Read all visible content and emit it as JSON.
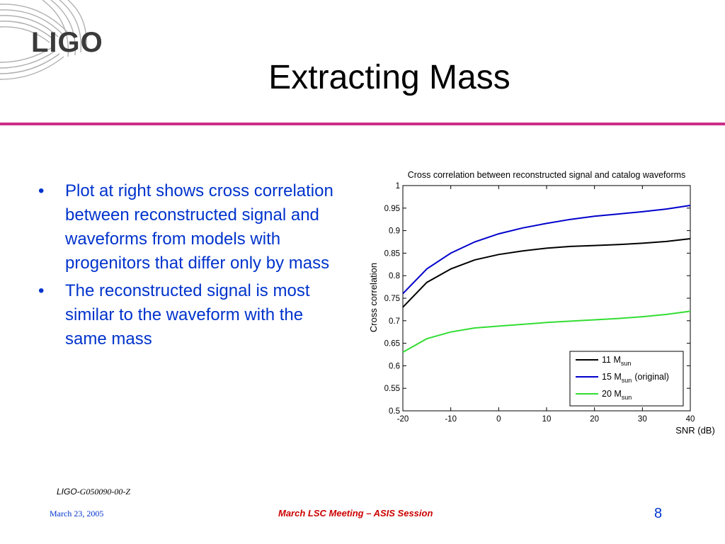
{
  "slide": {
    "title": "Extracting Mass",
    "logo_text": "LIGO",
    "bullets": [
      "Plot at right shows cross correlation between reconstructed signal and waveforms from models with progenitors that differ only by mass",
      "The reconstructed signal is most similar to the waveform with the same mass"
    ],
    "bullet_symbol": "•",
    "colors": {
      "accent_rule": "#cc2e88",
      "body_text": "#0033cc",
      "footer_meeting": "#cc0000"
    }
  },
  "footer": {
    "doc_prefix": "LIGO-",
    "doc_code": "G050090-00-Z",
    "date": "March 23, 2005",
    "meeting": "March LSC Meeting – ASIS Session",
    "page_number": "8"
  },
  "chart_data": {
    "type": "line",
    "title": "Cross correlation between reconstructed signal and catalog waveforms",
    "xlabel": "SNR (dB)",
    "ylabel": "Cross correlation",
    "xlim": [
      -20,
      40
    ],
    "ylim": [
      0.5,
      1
    ],
    "xticks": [
      -20,
      -10,
      0,
      10,
      20,
      30,
      40
    ],
    "yticks": [
      0.5,
      0.55,
      0.6,
      0.65,
      0.7,
      0.75,
      0.8,
      0.85,
      0.9,
      0.95,
      1
    ],
    "grid": false,
    "legend_position": "bottom-right",
    "x": [
      -20,
      -15,
      -10,
      -5,
      0,
      5,
      10,
      15,
      20,
      25,
      30,
      35,
      40
    ],
    "series": [
      {
        "name": "11 M",
        "subscript": "sun",
        "suffix": "",
        "color": "#000000",
        "values": [
          0.73,
          0.785,
          0.815,
          0.835,
          0.847,
          0.855,
          0.861,
          0.865,
          0.867,
          0.869,
          0.872,
          0.876,
          0.882
        ]
      },
      {
        "name": "15 M",
        "subscript": "sun",
        "suffix": "(original)",
        "color": "#0000cc",
        "values": [
          0.76,
          0.815,
          0.85,
          0.875,
          0.893,
          0.906,
          0.916,
          0.925,
          0.932,
          0.937,
          0.942,
          0.948,
          0.956
        ]
      },
      {
        "name": "20 M",
        "subscript": "sun",
        "suffix": "",
        "color": "#33dd33",
        "values": [
          0.63,
          0.66,
          0.675,
          0.684,
          0.688,
          0.692,
          0.696,
          0.699,
          0.702,
          0.705,
          0.709,
          0.714,
          0.721
        ]
      }
    ]
  }
}
